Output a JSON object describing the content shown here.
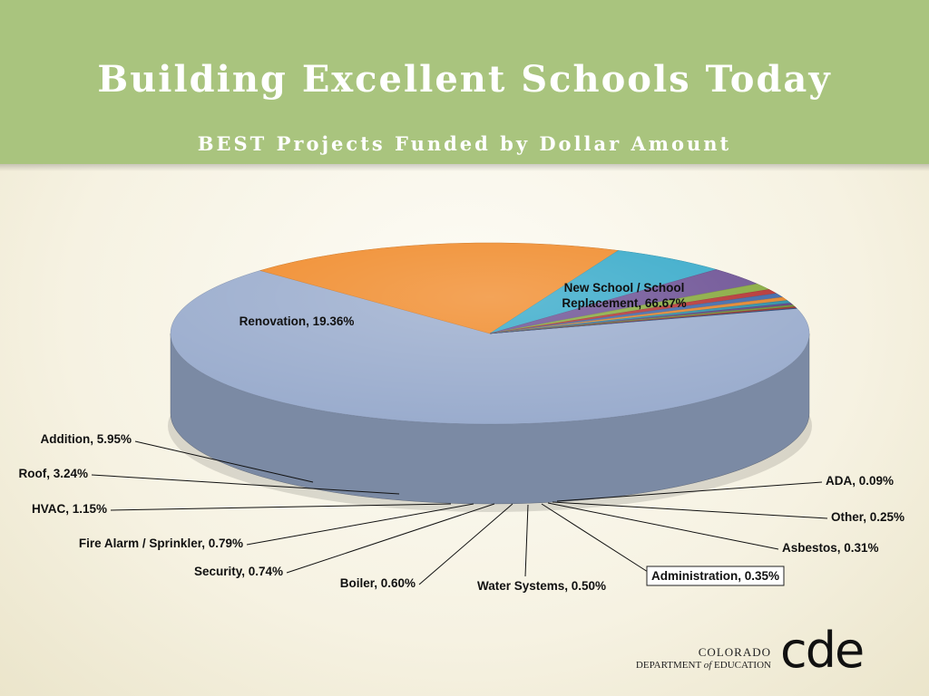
{
  "header": {
    "title": "Building Excellent Schools Today",
    "subtitle": "BEST Projects Funded by Dollar Amount"
  },
  "chart_data": {
    "type": "pie",
    "title": "BEST Projects Funded by Dollar Amount",
    "slices": [
      {
        "label": "New School / School Replacement",
        "value": 66.67,
        "display": "New School / School Replacement, 66.67%",
        "color": "#9aaccd"
      },
      {
        "label": "Renovation",
        "value": 19.36,
        "display": "Renovation, 19.36%",
        "color": "#f08a29"
      },
      {
        "label": "Addition",
        "value": 5.95,
        "display": "Addition, 5.95%",
        "color": "#35a9c9"
      },
      {
        "label": "Roof",
        "value": 3.24,
        "display": "Roof, 3.24%",
        "color": "#6b4f93"
      },
      {
        "label": "HVAC",
        "value": 1.15,
        "display": "HVAC, 1.15%",
        "color": "#86a93c"
      },
      {
        "label": "Fire Alarm / Sprinkler",
        "value": 0.79,
        "display": "Fire Alarm / Sprinkler, 0.79%",
        "color": "#b53131"
      },
      {
        "label": "Security",
        "value": 0.74,
        "display": "Security, 0.74%",
        "color": "#3d66a8"
      },
      {
        "label": "Boiler",
        "value": 0.6,
        "display": "Boiler, 0.60%",
        "color": "#e2832a"
      },
      {
        "label": "Water Systems",
        "value": 0.5,
        "display": "Water Systems,  0.50%",
        "color": "#2b8ea7"
      },
      {
        "label": "Administration",
        "value": 0.35,
        "display": "Administration, 0.35%",
        "color": "#5d3f84"
      },
      {
        "label": "Asbestos",
        "value": 0.31,
        "display": "Asbestos, 0.31%",
        "color": "#6f9034"
      },
      {
        "label": "Other",
        "value": 0.25,
        "display": "Other, 0.25%",
        "color": "#9e2f2c"
      },
      {
        "label": "ADA",
        "value": 0.09,
        "display": "ADA, 0.09%",
        "color": "#2c4f86"
      }
    ]
  },
  "logo": {
    "state": "COLORADO",
    "department_prefix": "DEPARTMENT",
    "department_of": "of",
    "department_suffix": "EDUCATION",
    "mark": "cde"
  }
}
